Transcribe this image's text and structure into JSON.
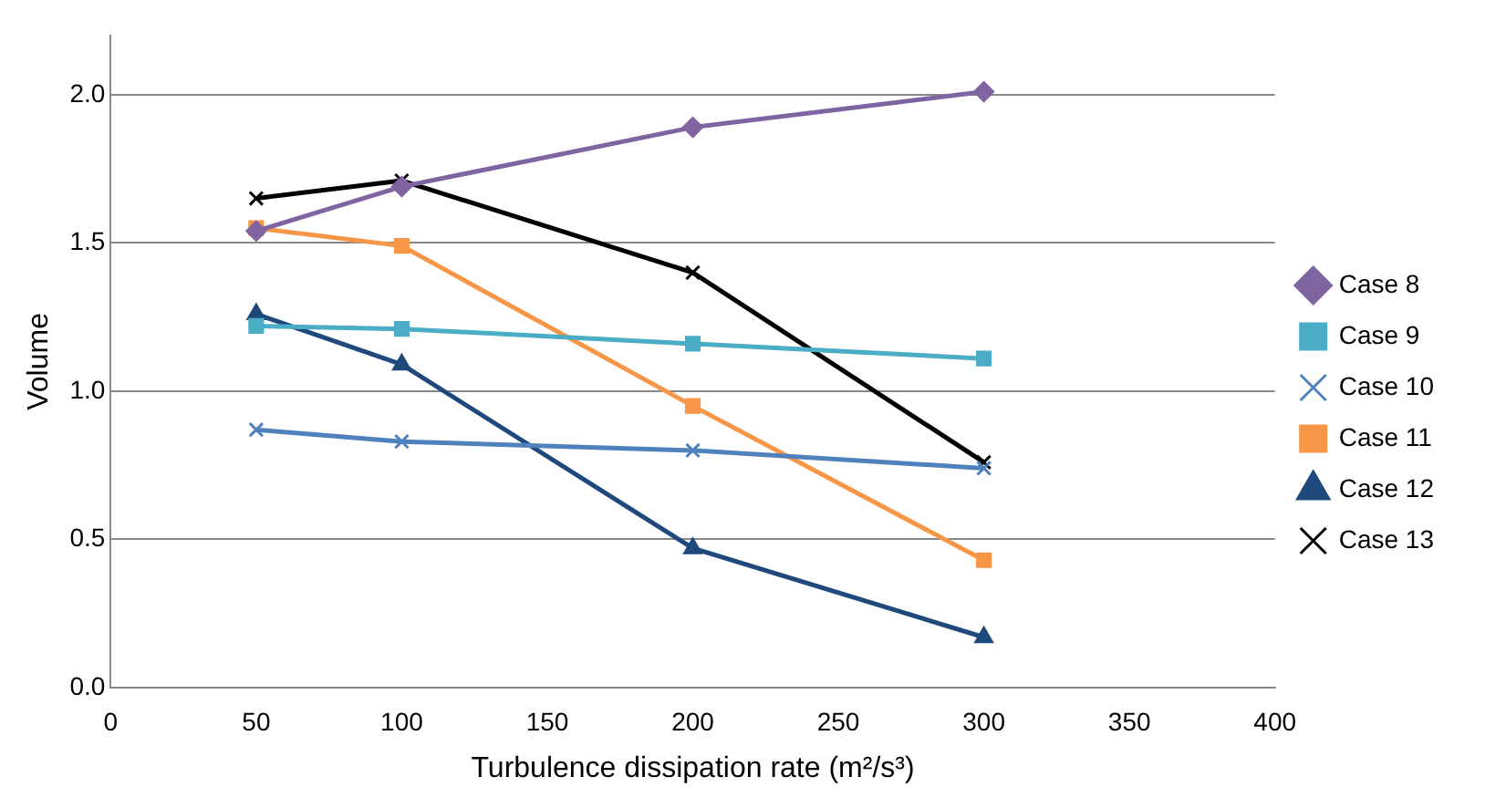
{
  "chart_data": {
    "type": "line",
    "xlabel": "Turbulence dissipation rate (m²/s³)",
    "ylabel": "Volume",
    "x": [
      50,
      100,
      200,
      300
    ],
    "xlim": [
      0,
      400
    ],
    "xticks": [
      0,
      50,
      100,
      150,
      200,
      250,
      300,
      350,
      400
    ],
    "ylim": [
      0,
      2.2
    ],
    "yticks": [
      {
        "value": 0,
        "label": "0.0"
      },
      {
        "value": 0.5,
        "label": "0.5"
      },
      {
        "value": 1,
        "label": "1.0"
      },
      {
        "value": 1.5,
        "label": "1.5"
      },
      {
        "value": 2,
        "label": "2.0"
      }
    ],
    "grid": "y",
    "legend": "right",
    "line_style": "solid",
    "series": [
      {
        "name": "Case 8",
        "color": "#8064a2",
        "marker": "diamond",
        "values": [
          1.54,
          1.69,
          1.89,
          2.01
        ]
      },
      {
        "name": "Case 9",
        "color": "#4bacc6",
        "marker": "square",
        "values": [
          1.22,
          1.21,
          1.16,
          1.11
        ]
      },
      {
        "name": "Case 10",
        "color": "#4f81bd",
        "marker": "cross",
        "values": [
          0.87,
          0.83,
          0.8,
          0.74
        ]
      },
      {
        "name": "Case 11",
        "color": "#f79646",
        "marker": "square",
        "values": [
          1.55,
          1.49,
          0.95,
          0.43
        ]
      },
      {
        "name": "Case 12",
        "color": "#1f497d",
        "marker": "triangle",
        "values": [
          1.26,
          1.09,
          0.47,
          0.17
        ]
      },
      {
        "name": "Case 13",
        "color": "#000000",
        "marker": "cross",
        "values": [
          1.65,
          1.71,
          1.4,
          0.76
        ]
      }
    ]
  }
}
